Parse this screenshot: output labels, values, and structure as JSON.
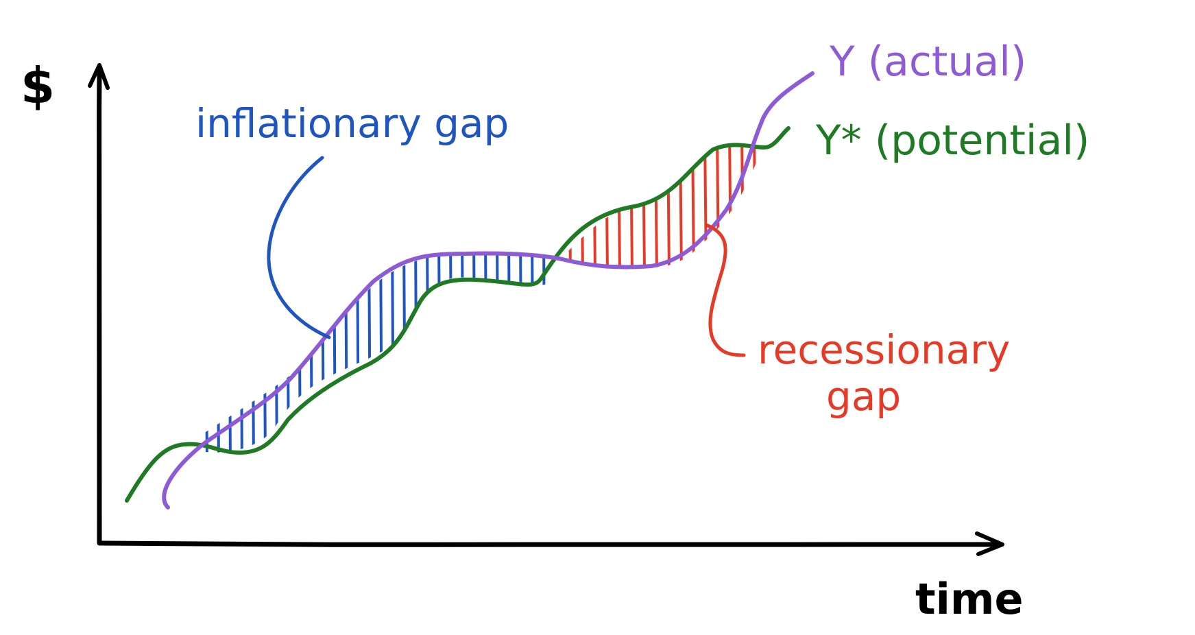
{
  "axes": {
    "y_label": "$",
    "x_label": "time"
  },
  "curves": {
    "actual_label": "Y (actual)",
    "potential_label": "Y* (potential)"
  },
  "annotations": {
    "inflationary_gap": "inflationary gap",
    "recessionary_gap_line1": "recessionary",
    "recessionary_gap_line2": "gap"
  },
  "colors": {
    "axis": "#000000",
    "actual": "#8e5bd6",
    "potential": "#1f7a24",
    "inflationary": "#1f55c0",
    "recessionary": "#e63a26"
  }
}
